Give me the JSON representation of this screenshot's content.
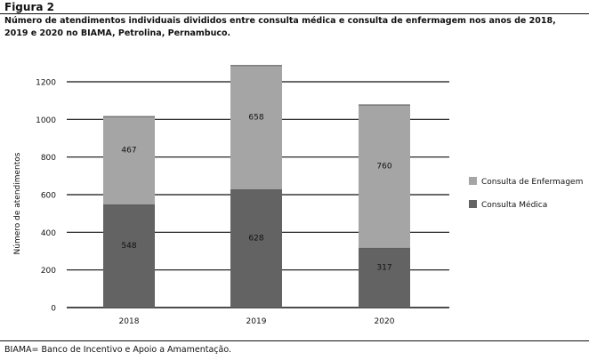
{
  "figure_label": "Figura 2",
  "caption": "Número de atendimentos individuais divididos entre consulta médica e consulta de enfermagem nos anos de 2018, 2019 e 2020 no BIAMA, Petrolina, Pernambuco.",
  "footnote": "BIAMA= Banco de Incentivo e Apoio a Amamentação.",
  "chart_data": {
    "type": "bar",
    "stacked": true,
    "categories": [
      "2018",
      "2019",
      "2020"
    ],
    "series": [
      {
        "name": "Consulta Médica",
        "values": [
          548,
          628,
          317
        ],
        "color": "#636363"
      },
      {
        "name": "Consulta de Enfermagem",
        "values": [
          467,
          658,
          760
        ],
        "color": "#a5a5a5"
      }
    ],
    "ylabel": "Número de atendimentos",
    "xlabel": "",
    "ylim": [
      0,
      1200
    ],
    "yticks": [
      0,
      200,
      400,
      600,
      800,
      1000,
      1200
    ],
    "grid": true,
    "legend_position": "right",
    "legend_order": [
      "Consulta de Enfermagem",
      "Consulta Médica"
    ]
  }
}
